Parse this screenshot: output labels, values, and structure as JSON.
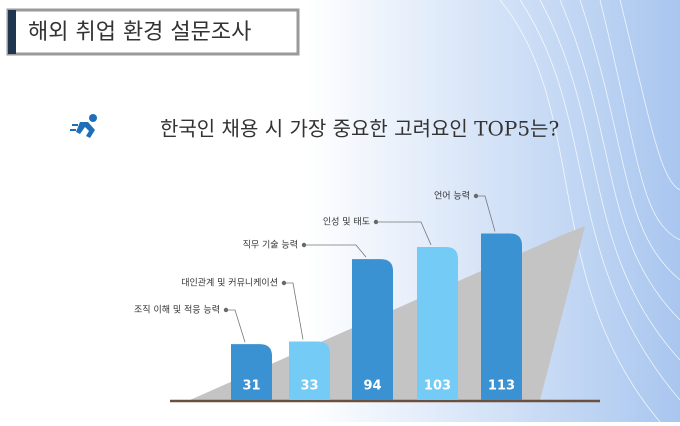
{
  "slide_title": "해외 취업 환경 설문조사",
  "chart_data": {
    "type": "bar",
    "title": "한국인 채용 시 가장 중요한 고려요인 TOP5는?",
    "categories": [
      "조직 이해 및 적응 능력",
      "대인관계 및 커뮤니케이션",
      "직무 기술 능력",
      "인성 및 태도",
      "언어 능력"
    ],
    "values": [
      31,
      33,
      94,
      103,
      113
    ],
    "colors": [
      "#3a92d2",
      "#74ccf6",
      "#3a92d2",
      "#74ccf6",
      "#3a92d2"
    ]
  }
}
